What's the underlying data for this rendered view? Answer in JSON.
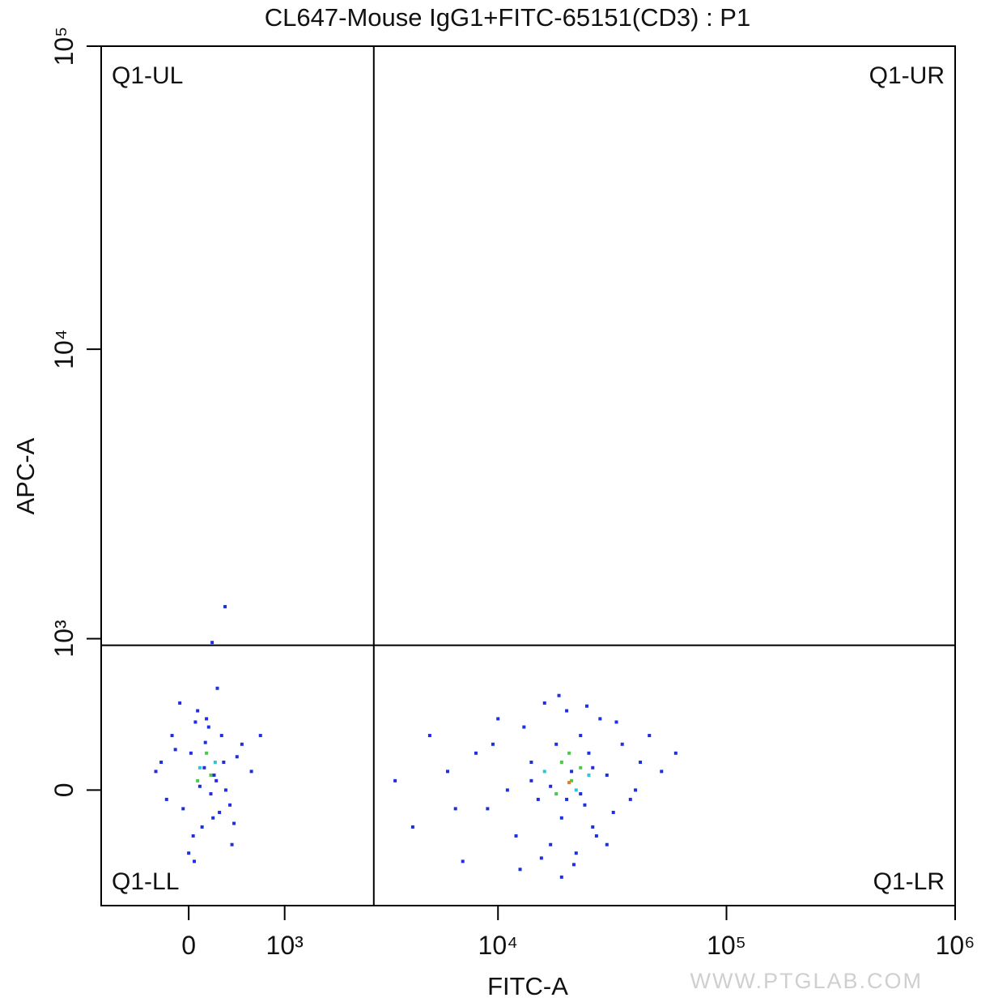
{
  "chart_data": {
    "type": "scatter",
    "title": "CL647-Mouse IgG1+FITC-65151(CD3) : P1",
    "x_label": "FITC-A",
    "y_label": "APC-A",
    "scale": "biexponential",
    "xlim": [
      -890,
      1000000
    ],
    "ylim": [
      -700,
      100000
    ],
    "xticks": [
      0,
      {
        "value": 1000,
        "label": "10³"
      },
      {
        "value": 10000,
        "label": "10⁴"
      },
      {
        "value": 100000,
        "label": "10⁵"
      },
      {
        "value": 1000000,
        "label": "10⁶"
      }
    ],
    "yticks": [
      0,
      {
        "value": 1000,
        "label": "10³"
      },
      {
        "value": 10000,
        "label": "10⁴"
      },
      {
        "value": 100000,
        "label": "10⁵"
      }
    ],
    "gates": {
      "x": 2800,
      "y": 940
    },
    "quadrants": {
      "ul": "Q1-UL",
      "ur": "Q1-UR",
      "ll": "Q1-LL",
      "lr": "Q1-LR"
    },
    "watermark": "WWW.PTGLAB.COM",
    "series": [
      {
        "color": "#1f2fe0",
        "x": [
          -300,
          -150,
          -50,
          20,
          80,
          120,
          180,
          250,
          320,
          400,
          500,
          600,
          -200,
          -80,
          40,
          100,
          160,
          220,
          300,
          380,
          450,
          -120,
          0,
          60,
          140,
          200,
          260,
          340,
          420,
          700,
          -250,
          50,
          150,
          230,
          280,
          333,
          212,
          3500,
          4200,
          5000,
          6000,
          7000,
          8000,
          9000,
          10000,
          11000,
          12000,
          13000,
          14000,
          15000,
          16000,
          17000,
          18000,
          19000,
          20000,
          21000,
          22000,
          23000,
          24000,
          25000,
          26000,
          28000,
          30000,
          32000,
          35000,
          38000,
          42000,
          46000,
          52000,
          60000,
          12500,
          15500,
          18500,
          21500,
          24500,
          27000,
          33000,
          14000,
          20000,
          26000,
          17000,
          23000,
          9500,
          6500,
          30000,
          40000,
          19000
        ],
        "values": [
          100,
          300,
          -100,
          200,
          450,
          -200,
          350,
          50,
          150,
          -300,
          250,
          100,
          -50,
          500,
          -250,
          20,
          400,
          -150,
          300,
          -80,
          180,
          220,
          -350,
          380,
          120,
          -20,
          600,
          0,
          -180,
          300,
          150,
          -400,
          260,
          80,
          -120,
          1330,
          965,
          50,
          -200,
          300,
          100,
          -400,
          200,
          -100,
          400,
          0,
          -250,
          350,
          150,
          -50,
          500,
          -300,
          250,
          -150,
          450,
          100,
          -350,
          300,
          -80,
          200,
          -200,
          400,
          80,
          -120,
          250,
          -50,
          150,
          300,
          100,
          200,
          -450,
          -380,
          550,
          -420,
          480,
          -250,
          380,
          50,
          -50,
          120,
          20,
          -20,
          250,
          -100,
          -300,
          0,
          -500
        ]
      },
      {
        "color": "#2cc6d8",
        "x": [
          100,
          240,
          16000,
          25000,
          22000
        ],
        "values": [
          120,
          150,
          100,
          80,
          0
        ]
      },
      {
        "color": "#4cc84a",
        "x": [
          160,
          200,
          80,
          19000,
          21000,
          23000,
          18000,
          20500
        ],
        "values": [
          200,
          80,
          50,
          150,
          50,
          120,
          -20,
          200
        ]
      },
      {
        "color": "#e87a1a",
        "x": [
          20500
        ],
        "values": [
          40
        ]
      }
    ]
  }
}
